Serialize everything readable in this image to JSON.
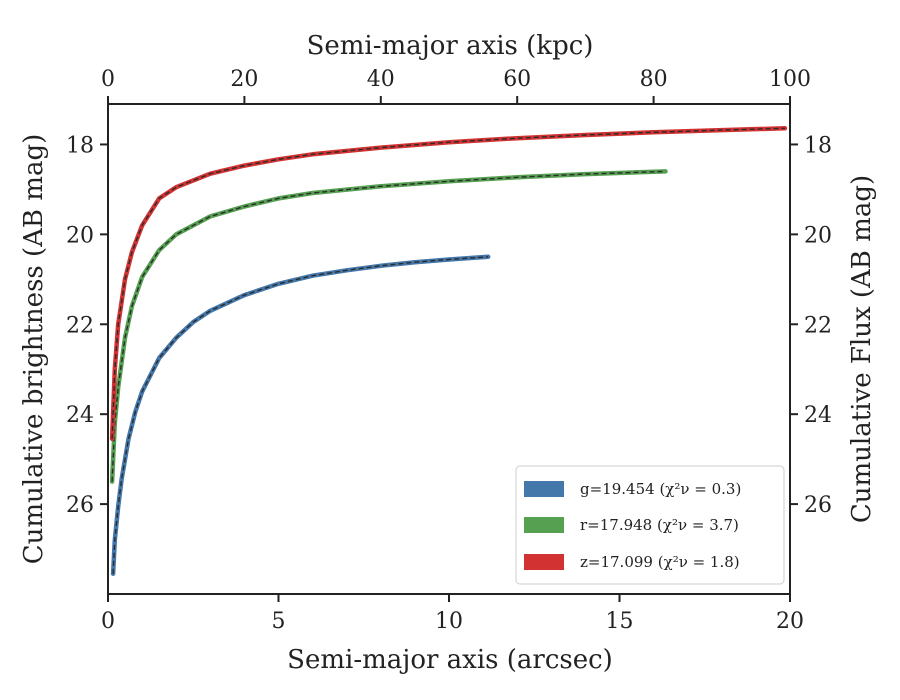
{
  "chart_data": {
    "type": "line",
    "title": "",
    "xlabel": "Semi-major axis (arcsec)",
    "ylabel": "Cumulative brightness (AB mag)",
    "top_xlabel": "Semi-major axis (kpc)",
    "right_ylabel": "Cumulative Flux (AB mag)",
    "xlim": [
      0,
      20
    ],
    "ylim": [
      28.0,
      17.1
    ],
    "y_inverted": true,
    "top_xlim": [
      0,
      100
    ],
    "x_ticks": [
      "0",
      "5",
      "10",
      "15",
      "20"
    ],
    "y_ticks": [
      "18",
      "20",
      "22",
      "24",
      "26"
    ],
    "top_x_ticks": [
      "0",
      "20",
      "40",
      "60",
      "80",
      "100"
    ],
    "grid": false,
    "legend_position": "lower-right",
    "colors": {
      "g": "#4477aa",
      "r": "#55a051",
      "z": "#d23232",
      "model_line": "#2b2b2b",
      "axis": "#222222"
    },
    "series": [
      {
        "name": "g",
        "legend_label": "g=19.454",
        "chi2_label": "(χ²ν = 0.3)",
        "color": "#4477aa",
        "x": [
          0.15,
          0.2,
          0.3,
          0.4,
          0.6,
          0.8,
          1.0,
          1.5,
          2.0,
          2.5,
          3.0,
          4.0,
          5.0,
          6.0,
          7.0,
          8.0,
          9.0,
          10.0,
          11.15
        ],
        "y": [
          27.55,
          26.8,
          26.05,
          25.45,
          24.55,
          23.95,
          23.5,
          22.75,
          22.3,
          21.95,
          21.7,
          21.35,
          21.1,
          20.92,
          20.8,
          20.7,
          20.62,
          20.56,
          20.5
        ]
      },
      {
        "name": "r",
        "legend_label": "r=17.948",
        "chi2_label": "(χ²ν = 3.7)",
        "color": "#55a051",
        "x": [
          0.12,
          0.2,
          0.3,
          0.5,
          0.7,
          1.0,
          1.5,
          2.0,
          3.0,
          4.0,
          5.0,
          6.0,
          8.0,
          10.0,
          12.0,
          14.0,
          16.35
        ],
        "y": [
          25.5,
          24.2,
          23.4,
          22.3,
          21.6,
          20.95,
          20.35,
          20.0,
          19.6,
          19.38,
          19.2,
          19.08,
          18.93,
          18.82,
          18.73,
          18.66,
          18.6
        ]
      },
      {
        "name": "z",
        "legend_label": "z=17.099",
        "chi2_label": "(χ²ν = 1.8)",
        "color": "#d23232",
        "x": [
          0.12,
          0.2,
          0.3,
          0.5,
          0.7,
          1.0,
          1.5,
          2.0,
          3.0,
          4.0,
          5.0,
          6.0,
          8.0,
          10.0,
          12.0,
          14.0,
          16.0,
          18.0,
          19.85
        ],
        "y": [
          24.55,
          23.0,
          22.0,
          21.0,
          20.4,
          19.8,
          19.2,
          18.95,
          18.65,
          18.47,
          18.33,
          18.22,
          18.07,
          17.95,
          17.86,
          17.79,
          17.73,
          17.68,
          17.64
        ]
      }
    ]
  }
}
